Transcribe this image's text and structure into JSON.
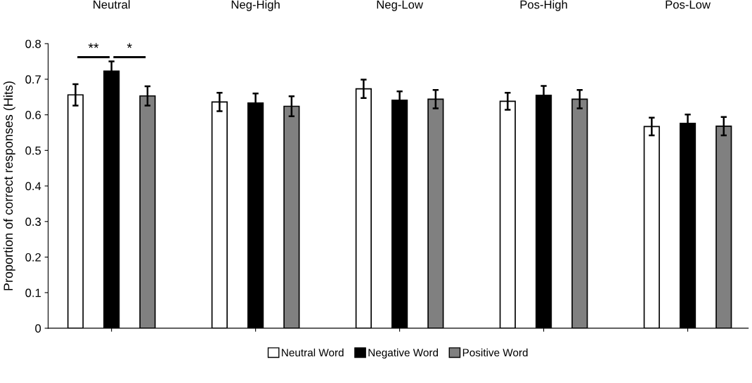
{
  "chart_data": {
    "type": "bar",
    "categories": [
      "Neutral",
      "Neg-High",
      "Neg-Low",
      "Pos-High",
      "Pos-Low"
    ],
    "ylabel": "Proportion of correct responses (Hits)",
    "ylim": [
      0,
      0.8
    ],
    "yticks": [
      0,
      0.1,
      0.2,
      0.3,
      0.4,
      0.5,
      0.6,
      0.7,
      0.8
    ],
    "legend": "bottom",
    "series": [
      {
        "name": "Neutral Word",
        "color": "#ffffff",
        "values": [
          0.656,
          0.636,
          0.673,
          0.638,
          0.567
        ],
        "errors": [
          0.03,
          0.026,
          0.026,
          0.024,
          0.025
        ]
      },
      {
        "name": "Negative Word",
        "color": "#000000",
        "values": [
          0.723,
          0.633,
          0.641,
          0.655,
          0.576
        ],
        "errors": [
          0.027,
          0.027,
          0.025,
          0.026,
          0.025
        ]
      },
      {
        "name": "Positive Word",
        "color": "#808080",
        "values": [
          0.653,
          0.624,
          0.644,
          0.644,
          0.568
        ],
        "errors": [
          0.027,
          0.028,
          0.026,
          0.026,
          0.026
        ]
      }
    ],
    "annotations": [
      "**",
      "*"
    ]
  }
}
